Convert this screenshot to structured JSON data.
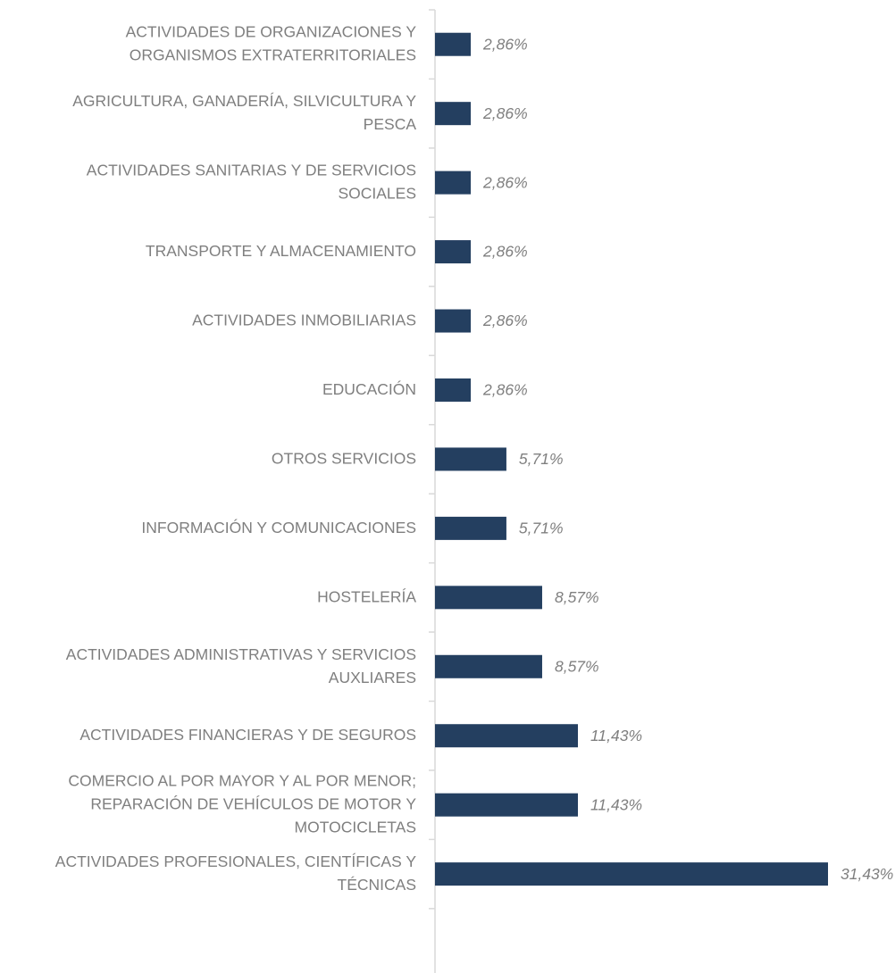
{
  "chart_data": {
    "type": "barh",
    "categories": [
      "ACTIVIDADES DE ORGANIZACIONES Y\nORGANISMOS EXTRATERRITORIALES",
      "AGRICULTURA, GANADERÍA, SILVICULTURA Y\nPESCA",
      "ACTIVIDADES SANITARIAS Y DE SERVICIOS\nSOCIALES",
      "TRANSPORTE Y ALMACENAMIENTO",
      "ACTIVIDADES INMOBILIARIAS",
      "EDUCACIÓN",
      "OTROS SERVICIOS",
      "INFORMACIÓN Y COMUNICACIONES",
      "HOSTELERÍA",
      "ACTIVIDADES ADMINISTRATIVAS Y SERVICIOS\nAUXLIARES",
      "ACTIVIDADES FINANCIERAS Y DE SEGUROS",
      "COMERCIO AL POR MAYOR Y AL POR MENOR;\nREPARACIÓN DE VEHÍCULOS DE MOTOR Y\nMOTOCICLETAS",
      "ACTIVIDADES PROFESIONALES, CIENTÍFICAS Y\nTÉCNICAS"
    ],
    "values": [
      2.86,
      2.86,
      2.86,
      2.86,
      2.86,
      2.86,
      5.71,
      5.71,
      8.57,
      8.57,
      11.43,
      11.43,
      31.43
    ],
    "value_labels": [
      "2,86%",
      "2,86%",
      "2,86%",
      "2,86%",
      "2,86%",
      "2,86%",
      "5,71%",
      "5,71%",
      "8,57%",
      "8,57%",
      "11,43%",
      "11,43%",
      "31,43%"
    ],
    "color": "#243f60"
  }
}
